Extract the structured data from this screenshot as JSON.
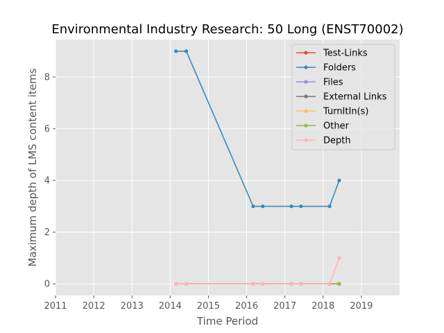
{
  "chart_data": {
    "type": "line",
    "title": "Environmental Industry Research: 50 Long (ENST70002)",
    "xlabel": "Time Period",
    "ylabel": "Maximum depth of LMS content items",
    "xlim": [
      2011,
      2020
    ],
    "ylim": [
      -0.45,
      9.45
    ],
    "xticks": [
      "2011",
      "2012",
      "2013",
      "2014",
      "2015",
      "2016",
      "2017",
      "2018",
      "2019"
    ],
    "yticks": [
      "0",
      "2",
      "4",
      "6",
      "8"
    ],
    "grid": true,
    "legend_position": "top-right",
    "series": [
      {
        "name": "Test-Links",
        "color": "#E24A33",
        "x": [
          2014.15,
          2014.42,
          2016.17,
          2016.42,
          2017.17,
          2017.42,
          2018.17,
          2018.42
        ],
        "values": [
          0,
          0,
          0,
          0,
          0,
          0,
          0,
          0
        ]
      },
      {
        "name": "Folders",
        "color": "#348ABD",
        "x": [
          2014.15,
          2014.42,
          2016.17,
          2016.42,
          2017.17,
          2017.42,
          2018.17,
          2018.42
        ],
        "values": [
          9,
          9,
          3,
          3,
          3,
          3,
          3,
          4
        ]
      },
      {
        "name": "Files",
        "color": "#988ED5",
        "x": [
          2014.15,
          2014.42,
          2016.17,
          2016.42,
          2017.17,
          2017.42,
          2018.17,
          2018.42
        ],
        "values": [
          0,
          0,
          0,
          0,
          0,
          0,
          0,
          0
        ]
      },
      {
        "name": "External Links",
        "color": "#777777",
        "x": [
          2014.15,
          2014.42,
          2016.17,
          2016.42,
          2017.17,
          2017.42,
          2018.17,
          2018.42
        ],
        "values": [
          0,
          0,
          0,
          0,
          0,
          0,
          0,
          0
        ]
      },
      {
        "name": "TurnItIn(s)",
        "color": "#FBC15E",
        "x": [
          2014.15,
          2014.42,
          2016.17,
          2016.42,
          2017.17,
          2017.42,
          2018.17,
          2018.42
        ],
        "values": [
          0,
          0,
          0,
          0,
          0,
          0,
          0,
          0
        ]
      },
      {
        "name": "Other",
        "color": "#8EBA42",
        "x": [
          2014.15,
          2014.42,
          2016.17,
          2016.42,
          2017.17,
          2017.42,
          2018.17,
          2018.42
        ],
        "values": [
          0,
          0,
          0,
          0,
          0,
          0,
          0,
          0
        ]
      },
      {
        "name": "Depth",
        "color": "#FFB5B8",
        "x": [
          2014.15,
          2014.42,
          2016.17,
          2016.42,
          2017.17,
          2017.42,
          2018.17,
          2018.42
        ],
        "values": [
          0,
          0,
          0,
          0,
          0,
          0,
          0,
          1
        ]
      }
    ]
  }
}
